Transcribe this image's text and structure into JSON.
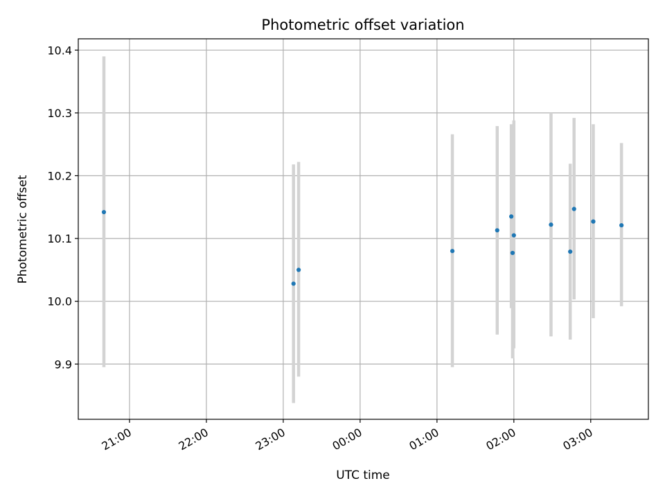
{
  "chart_data": {
    "type": "scatter",
    "title": "Photometric offset variation",
    "xlabel": "UTC time",
    "ylabel": "Photometric offset",
    "x_type": "time",
    "x_unit": "minutes",
    "xlim": [
      "20:20",
      "03:45"
    ],
    "ylim": [
      9.812,
      10.418
    ],
    "xticks": [
      {
        "value": "21:00",
        "label": "21:00"
      },
      {
        "value": "22:00",
        "label": "22:00"
      },
      {
        "value": "23:00",
        "label": "23:00"
      },
      {
        "value": "00:00",
        "label": "00:00"
      },
      {
        "value": "01:00",
        "label": "01:00"
      },
      {
        "value": "02:00",
        "label": "02:00"
      },
      {
        "value": "03:00",
        "label": "03:00"
      }
    ],
    "yticks": [
      9.9,
      10.0,
      10.1,
      10.2,
      10.3,
      10.4
    ],
    "ytick_labels": [
      "9.9",
      "10.0",
      "10.1",
      "10.2",
      "10.3",
      "10.4"
    ],
    "grid": true,
    "series": [
      {
        "marker_color": "#1f77b4",
        "errorbar_color": "#d3d3d3",
        "points": [
          {
            "t": "20:40",
            "y": 10.142,
            "lo": 9.895,
            "hi": 10.39
          },
          {
            "t": "23:08",
            "y": 10.028,
            "lo": 9.838,
            "hi": 10.218
          },
          {
            "t": "23:12",
            "y": 10.05,
            "lo": 9.88,
            "hi": 10.222
          },
          {
            "t": "01:12",
            "y": 10.08,
            "lo": 9.895,
            "hi": 10.266
          },
          {
            "t": "01:47",
            "y": 10.113,
            "lo": 9.947,
            "hi": 10.279
          },
          {
            "t": "01:58",
            "y": 10.135,
            "lo": 9.989,
            "hi": 10.282
          },
          {
            "t": "01:59",
            "y": 10.077,
            "lo": 9.909,
            "hi": 10.244
          },
          {
            "t": "02:00",
            "y": 10.105,
            "lo": 9.925,
            "hi": 10.288
          },
          {
            "t": "02:29",
            "y": 10.122,
            "lo": 9.944,
            "hi": 10.3
          },
          {
            "t": "02:44",
            "y": 10.079,
            "lo": 9.939,
            "hi": 10.219
          },
          {
            "t": "02:47",
            "y": 10.147,
            "lo": 10.003,
            "hi": 10.292
          },
          {
            "t": "03:02",
            "y": 10.127,
            "lo": 9.973,
            "hi": 10.282
          },
          {
            "t": "03:24",
            "y": 10.121,
            "lo": 9.992,
            "hi": 10.252
          }
        ]
      }
    ]
  }
}
